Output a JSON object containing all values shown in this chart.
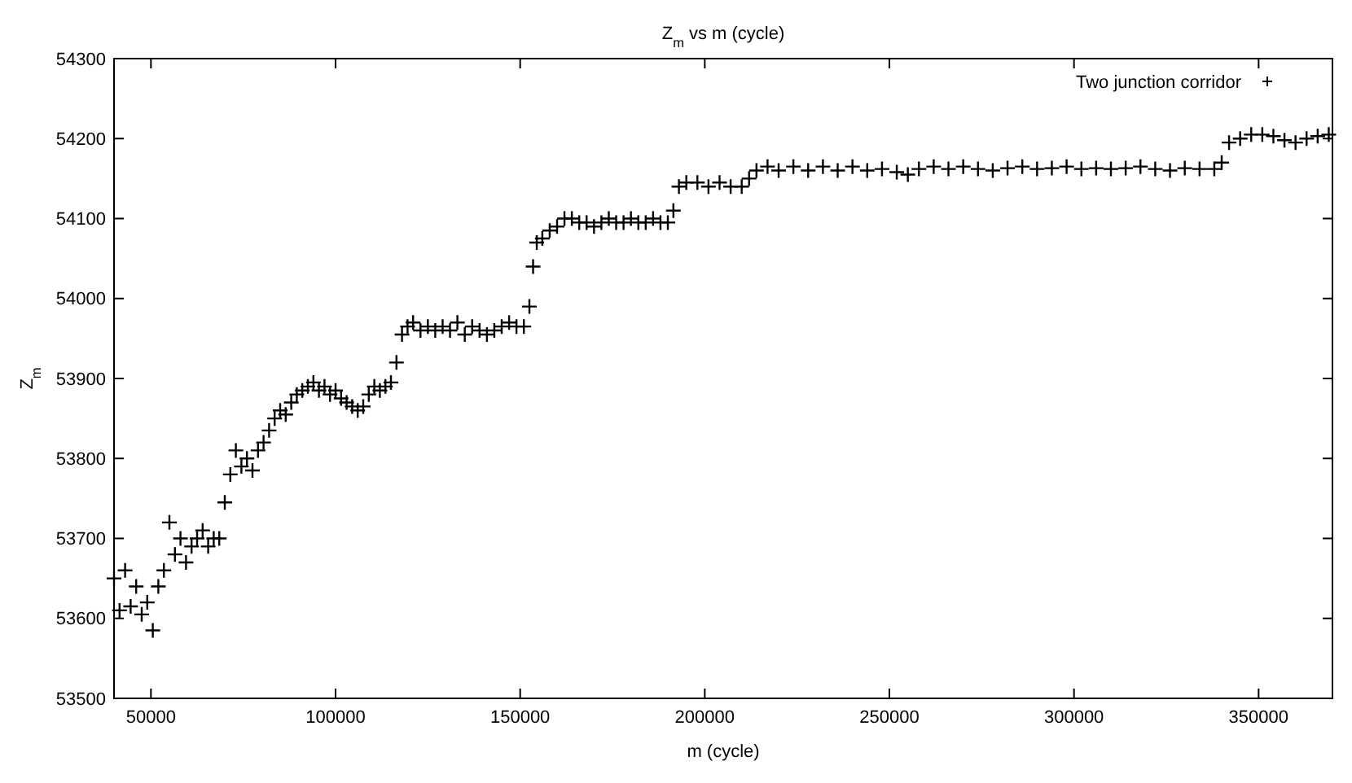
{
  "chart_data": {
    "type": "scatter",
    "title": "Z$_{m}$ vs m (cycle)",
    "xlabel": "m (cycle)",
    "ylabel": "Z$_{m}$",
    "xlim": [
      40000,
      370000
    ],
    "xticks": [
      50000,
      100000,
      150000,
      200000,
      250000,
      300000,
      350000
    ],
    "ylim": [
      53500,
      54300
    ],
    "yticks": [
      53500,
      53600,
      53700,
      53800,
      53900,
      54000,
      54100,
      54200,
      54300
    ],
    "grid": false,
    "legend": "top right",
    "marker": "cross",
    "series": [
      {
        "name": "Two junction corridor",
        "color": "#000000",
        "x": [
          40000,
          41500,
          43000,
          44500,
          46000,
          47500,
          49000,
          50500,
          52000,
          53500,
          55000,
          56500,
          58000,
          59500,
          61000,
          62500,
          64000,
          65500,
          67000,
          68500,
          70000,
          71500,
          73000,
          74500,
          76000,
          77500,
          79000,
          80500,
          82000,
          83500,
          85000,
          86500,
          88000,
          89500,
          91000,
          92500,
          94000,
          95500,
          97000,
          98500,
          100000,
          101500,
          103000,
          104500,
          106000,
          107500,
          109000,
          110500,
          112000,
          113500,
          115000,
          116500,
          118000,
          119500,
          121000,
          123000,
          125000,
          127000,
          129000,
          131000,
          133000,
          135000,
          137000,
          139000,
          141000,
          143000,
          145000,
          147000,
          149000,
          151000,
          152500,
          153500,
          154500,
          156000,
          158000,
          160000,
          162000,
          164000,
          166000,
          168000,
          170000,
          172000,
          174000,
          176000,
          178000,
          180000,
          182000,
          184000,
          186000,
          188000,
          190000,
          191500,
          193000,
          195000,
          198000,
          201000,
          204000,
          207000,
          210000,
          212000,
          214000,
          217000,
          220000,
          224000,
          228000,
          232000,
          236000,
          240000,
          244000,
          248000,
          252000,
          255000,
          258000,
          262000,
          266000,
          270000,
          274000,
          278000,
          282000,
          286000,
          290000,
          294000,
          298000,
          302000,
          306000,
          310000,
          314000,
          318000,
          322000,
          326000,
          330000,
          334000,
          338000,
          340000,
          342000,
          345000,
          348000,
          351000,
          354000,
          357000,
          360000,
          363000,
          366000,
          369000
        ],
        "values": [
          53650,
          53610,
          53660,
          53615,
          53640,
          53605,
          53620,
          53585,
          53640,
          53660,
          53720,
          53680,
          53700,
          53670,
          53690,
          53700,
          53710,
          53690,
          53700,
          53700,
          53745,
          53780,
          53810,
          53790,
          53800,
          53785,
          53810,
          53820,
          53835,
          53850,
          53860,
          53855,
          53870,
          53880,
          53885,
          53890,
          53895,
          53885,
          53890,
          53880,
          53885,
          53875,
          53870,
          53865,
          53860,
          53865,
          53880,
          53890,
          53885,
          53890,
          53895,
          53920,
          53955,
          53965,
          53970,
          53960,
          53965,
          53960,
          53965,
          53960,
          53970,
          53955,
          53965,
          53960,
          53955,
          53960,
          53965,
          53970,
          53965,
          53965,
          53990,
          54040,
          54070,
          54075,
          54085,
          54090,
          54100,
          54100,
          54095,
          54095,
          54090,
          54095,
          54100,
          54095,
          54095,
          54100,
          54095,
          54095,
          54100,
          54095,
          54095,
          54110,
          54140,
          54145,
          54145,
          54140,
          54145,
          54140,
          54140,
          54150,
          54160,
          54165,
          54160,
          54165,
          54160,
          54165,
          54160,
          54165,
          54160,
          54162,
          54158,
          54155,
          54162,
          54165,
          54162,
          54165,
          54162,
          54160,
          54163,
          54165,
          54162,
          54163,
          54165,
          54162,
          54163,
          54162,
          54163,
          54165,
          54162,
          54160,
          54163,
          54162,
          54162,
          54170,
          54195,
          54200,
          54205,
          54205,
          54203,
          54198,
          54195,
          54200,
          54203,
          54205
        ]
      }
    ]
  }
}
